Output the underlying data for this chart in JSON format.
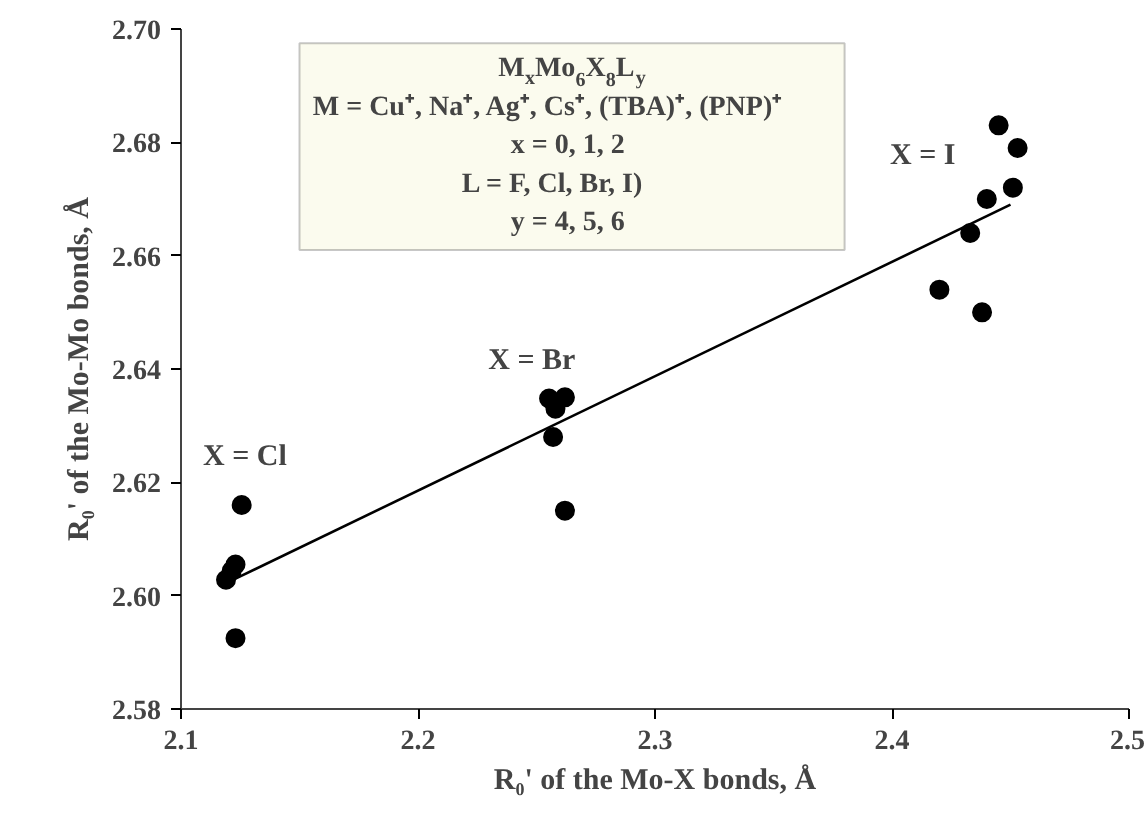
{
  "chart_data": {
    "type": "scatter",
    "xlabel": "R₀' of the Mo-X bonds, Å",
    "ylabel": "R₀' of the Mo-Mo bonds, Å",
    "xlim": [
      2.1,
      2.5
    ],
    "xticks": [
      2.1,
      2.2,
      2.3,
      2.4,
      2.5
    ],
    "ylim": [
      2.58,
      2.7
    ],
    "yticks": [
      2.58,
      {
        "value": 2.6,
        "label": "2.60"
      },
      2.62,
      2.64,
      2.66,
      2.68,
      {
        "value": 2.7,
        "label": "2.70"
      }
    ],
    "grid": false,
    "marker": "circle",
    "series": [
      {
        "color": "#000000",
        "x": [
          2.1256,
          2.123,
          2.1214,
          2.119,
          2.123,
          2.2553,
          2.262,
          2.258,
          2.257,
          2.262,
          2.445,
          2.453,
          2.451,
          2.44,
          2.433,
          2.42,
          2.438
        ],
        "values": [
          2.616,
          2.6055,
          2.6044,
          2.6028,
          2.5925,
          2.6348,
          2.635,
          2.633,
          2.628,
          2.615,
          2.683,
          2.679,
          2.672,
          2.67,
          2.664,
          2.654,
          2.65
        ]
      },
      {
        "type": "line",
        "color": "#000000",
        "line_style": "solid",
        "marker": "none",
        "x": [
          2.123,
          2.45
        ],
        "values": [
          2.603,
          2.669
        ]
      }
    ],
    "annotations": [
      "M$_{x}$Mo$_{6}$X$_{8}$L$_{y}$",
      "M = Cu⁺, Na⁺, Ag⁺, Cs⁺, (TBA)⁺, (PNP)⁺",
      "x = 0, 1, 2",
      "L = F, Cl, Br, I)",
      "y = 4, 5, 6",
      "X = Cl",
      "X = Br",
      "X = I"
    ]
  }
}
